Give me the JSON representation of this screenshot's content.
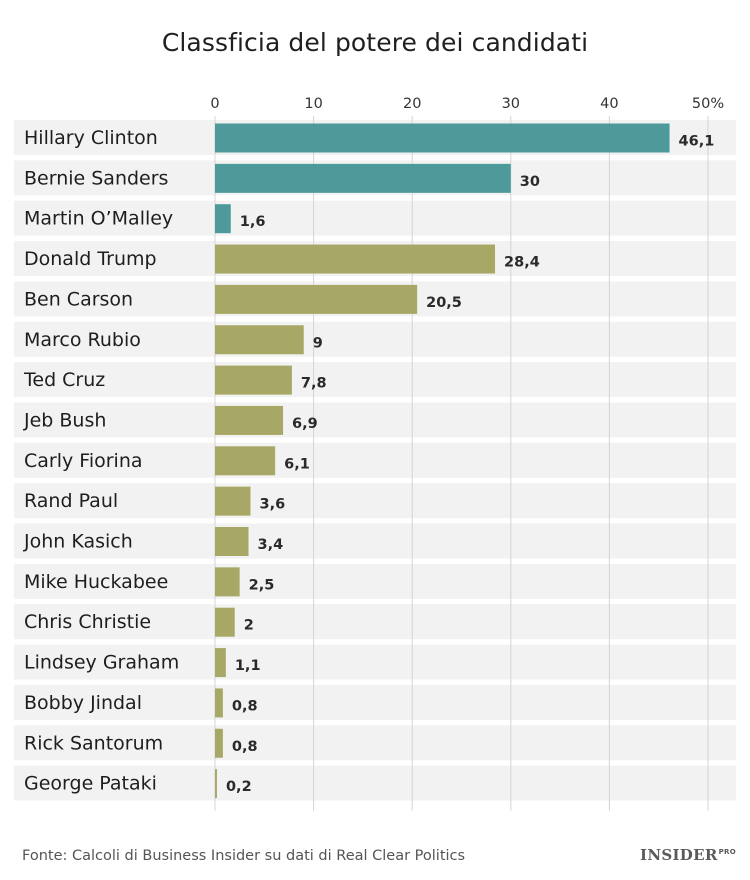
{
  "chart_data": {
    "type": "bar",
    "orientation": "horizontal",
    "title": "Classficia del potere dei candidati",
    "xlim": [
      0,
      50
    ],
    "x_ticks": [
      "0",
      "10",
      "20",
      "30",
      "40",
      "50%"
    ],
    "grid": true,
    "categories": [
      "Hillary Clinton",
      "Bernie Sanders",
      "Martin O’Malley",
      "Donald Trump",
      "Ben Carson",
      "Marco Rubio",
      "Ted Cruz",
      "Jeb Bush",
      "Carly Fiorina",
      "Rand Paul",
      "John Kasich",
      "Mike Huckabee",
      "Chris Christie",
      "Lindsey Graham",
      "Bobby Jindal",
      "Rick Santorum",
      "George Pataki"
    ],
    "values": [
      46.1,
      30,
      1.6,
      28.4,
      20.5,
      9,
      7.8,
      6.9,
      6.1,
      3.6,
      3.4,
      2.5,
      2,
      1.1,
      0.8,
      0.8,
      0.2
    ],
    "value_labels": [
      "46,1",
      "30",
      "1,6",
      "28,4",
      "20,5",
      "9",
      "7,8",
      "6,9",
      "6,1",
      "3,6",
      "3,4",
      "2,5",
      "2",
      "1,1",
      "0,8",
      "0,8",
      "0,2"
    ],
    "party": [
      "dem",
      "dem",
      "dem",
      "rep",
      "rep",
      "rep",
      "rep",
      "rep",
      "rep",
      "rep",
      "rep",
      "rep",
      "rep",
      "rep",
      "rep",
      "rep",
      "rep"
    ],
    "colors": {
      "dem": "#4e9a9a",
      "rep": "#a8a866",
      "row_bg": "#f2f2f2",
      "grid": "#d4d4d4"
    }
  },
  "source": "Fonte: Calcoli di Business Insider su dati di Real Clear Politics",
  "logo": {
    "name": "INSIDER",
    "suffix": "PRO"
  }
}
